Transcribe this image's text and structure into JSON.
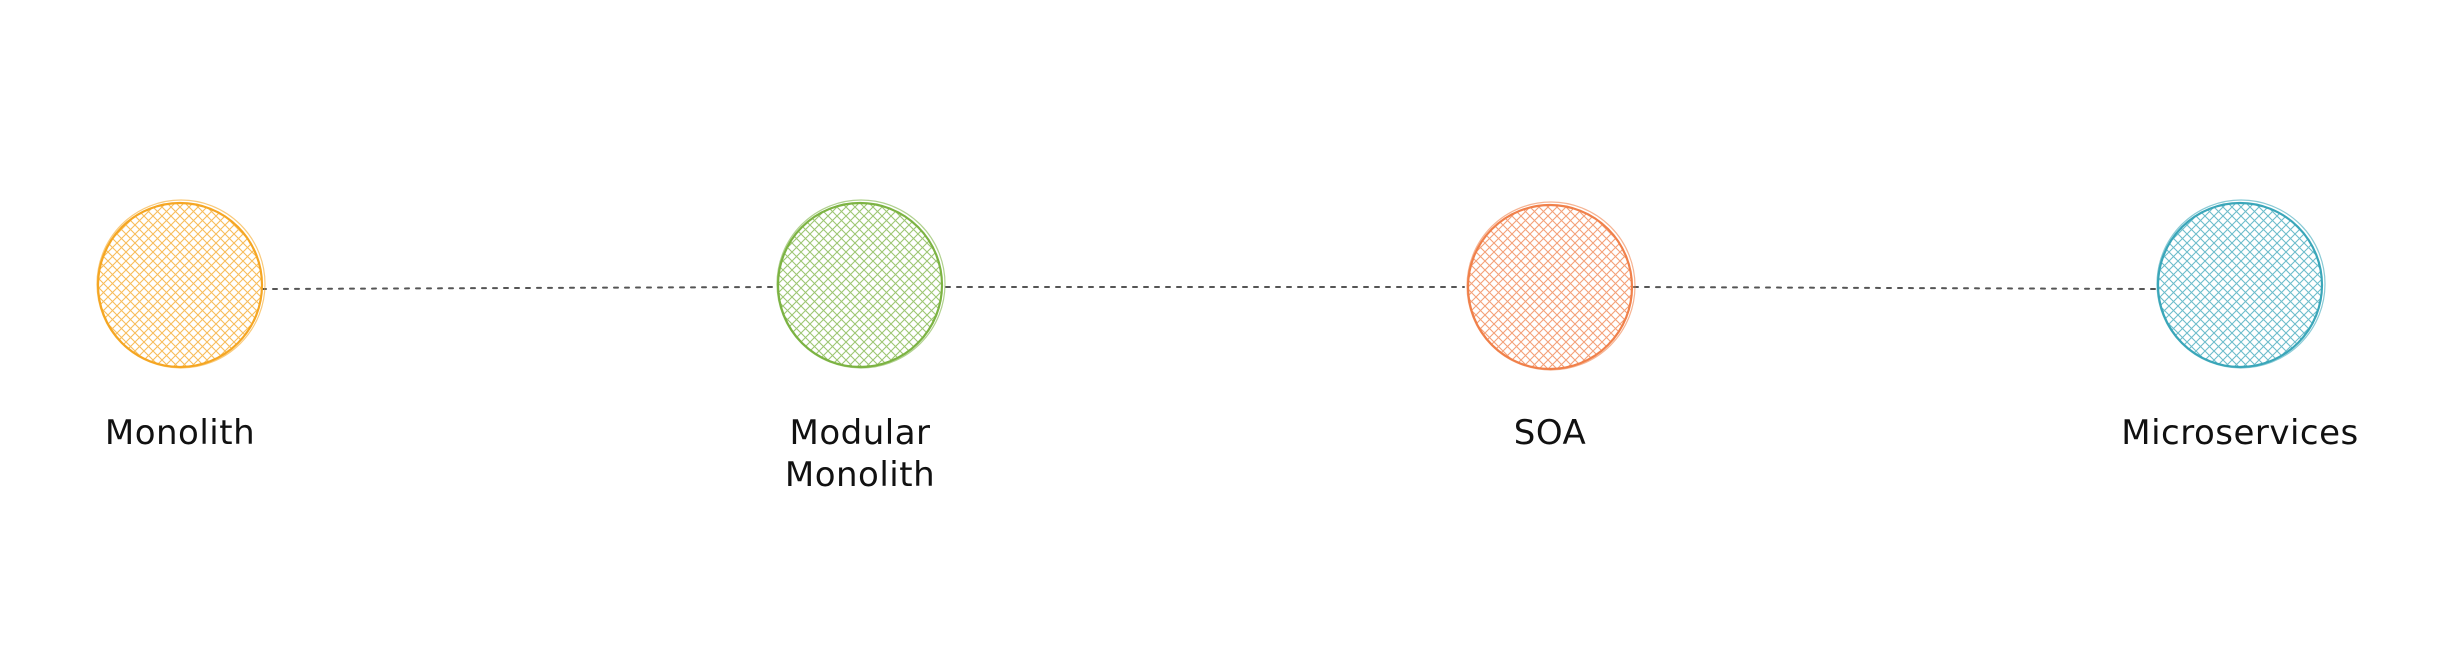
{
  "diagram": {
    "type": "timeline",
    "nodes": [
      {
        "id": "monolith",
        "label": "Monolith",
        "color": "#f5a623"
      },
      {
        "id": "modular-monolith",
        "label": "Modular\nMonolith",
        "color": "#7cb342"
      },
      {
        "id": "soa",
        "label": "SOA",
        "color": "#f0804a"
      },
      {
        "id": "microservices",
        "label": "Microservices",
        "color": "#3aa6b9"
      }
    ],
    "connector": {
      "style": "dotted",
      "color": "#555555"
    }
  }
}
